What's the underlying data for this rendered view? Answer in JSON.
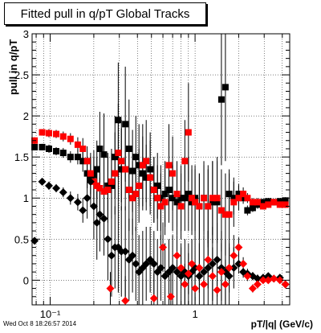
{
  "chart_data": {
    "type": "scatter",
    "title": "Fitted pull in q/pT  Global Tracks",
    "xlabel": "pT/|q| (GeV/c)",
    "ylabel": "pull in q/pT",
    "footer": "Wed Oct  8 18:26:57 2014",
    "x_scale": "log",
    "xlim": [
      0.075,
      4.5
    ],
    "ylim": [
      -0.3,
      3.0
    ],
    "x_ticks": [
      {
        "value": 0.1,
        "label": "10⁻¹"
      },
      {
        "value": 1,
        "label": "1"
      }
    ],
    "y_ticks": [
      {
        "value": 0,
        "label": "0"
      },
      {
        "value": 0.5,
        "label": "0.5"
      },
      {
        "value": 1,
        "label": "1"
      },
      {
        "value": 1.5,
        "label": "1.5"
      },
      {
        "value": 2,
        "label": "2"
      },
      {
        "value": 2.5,
        "label": "2.5"
      },
      {
        "value": 3,
        "label": "3"
      }
    ],
    "grid": true,
    "series": [
      {
        "color": "#000000",
        "marker": "square",
        "points": [
          [
            0.078,
            1.62,
            0.04
          ],
          [
            0.088,
            1.62,
            0.04
          ],
          [
            0.098,
            1.6,
            0.05
          ],
          [
            0.11,
            1.57,
            0.05
          ],
          [
            0.123,
            1.55,
            0.06
          ],
          [
            0.138,
            1.5,
            0.07
          ],
          [
            0.155,
            1.5,
            0.09
          ],
          [
            0.168,
            1.45,
            0.13
          ],
          [
            0.18,
            1.3,
            0.18
          ],
          [
            0.19,
            1.25,
            0.25
          ],
          [
            0.2,
            1.28,
            0.3
          ],
          [
            0.21,
            1.35,
            0.35
          ],
          [
            0.22,
            1.6,
            0.45
          ],
          [
            0.235,
            1.53,
            0.5
          ],
          [
            0.25,
            1.15,
            0.4
          ],
          [
            0.265,
            1.15,
            0.4
          ],
          [
            0.28,
            1.5,
            0.5
          ],
          [
            0.295,
            1.95,
            0.7
          ],
          [
            0.31,
            1.35,
            0.5
          ],
          [
            0.33,
            1.9,
            0.7
          ],
          [
            0.35,
            1.6,
            0.6
          ],
          [
            0.37,
            1.33,
            0.5
          ],
          [
            0.39,
            1.5,
            0.5
          ],
          [
            0.41,
            1.4,
            0.5
          ],
          [
            0.435,
            1.3,
            0.45
          ],
          [
            0.46,
            1.25,
            0.4
          ],
          [
            0.49,
            1.35,
            0.45
          ],
          [
            0.52,
            1.1,
            0.4
          ],
          [
            0.55,
            1.15,
            0.4
          ],
          [
            0.58,
            1.0,
            0.4
          ],
          [
            0.62,
            1.05,
            0.4
          ],
          [
            0.66,
            1.1,
            0.4
          ],
          [
            0.7,
            1.0,
            0.4
          ],
          [
            0.75,
            0.95,
            0.4
          ],
          [
            0.8,
            1.0,
            0.4
          ],
          [
            0.85,
            1.0,
            0.4
          ],
          [
            0.9,
            1.05,
            0.45
          ],
          [
            0.95,
            0.95,
            0.4
          ],
          [
            1.0,
            1.0,
            0.4
          ],
          [
            1.07,
            0.9,
            0.4
          ],
          [
            1.15,
            1.0,
            0.45
          ],
          [
            1.23,
            0.9,
            0.5
          ],
          [
            1.32,
            0.95,
            0.5
          ],
          [
            1.42,
            0.95,
            0.5
          ],
          [
            1.52,
            2.2,
            0.8
          ],
          [
            1.62,
            2.35,
            0.9
          ],
          [
            1.72,
            1.05,
            0.3
          ],
          [
            1.85,
            1.0,
            0.2
          ],
          [
            2.0,
            1.05,
            0.12
          ],
          [
            2.15,
            1.0,
            0.07
          ],
          [
            2.3,
            0.85,
            0.06
          ],
          [
            2.5,
            0.88,
            0.05
          ],
          [
            2.7,
            0.92,
            0.05
          ],
          [
            2.95,
            0.95,
            0.04
          ],
          [
            3.2,
            0.96,
            0.04
          ],
          [
            3.5,
            0.95,
            0.04
          ],
          [
            3.85,
            0.96,
            0.04
          ],
          [
            4.2,
            0.97,
            0.04
          ]
        ]
      },
      {
        "color": "#ff0000",
        "marker": "square",
        "points": [
          [
            0.078,
            1.7,
            0.04
          ],
          [
            0.088,
            1.8,
            0.04
          ],
          [
            0.098,
            1.79,
            0.05
          ],
          [
            0.11,
            1.78,
            0.05
          ],
          [
            0.123,
            1.75,
            0.06
          ],
          [
            0.138,
            1.72,
            0.07
          ],
          [
            0.155,
            1.65,
            0.09
          ],
          [
            0.168,
            1.6,
            0.13
          ],
          [
            0.18,
            1.45,
            0.18
          ],
          [
            0.19,
            1.3,
            0.25
          ],
          [
            0.2,
            1.2,
            0.3
          ],
          [
            0.21,
            1.15,
            0.35
          ],
          [
            0.22,
            1.12,
            0.45
          ],
          [
            0.235,
            1.08,
            0.5
          ],
          [
            0.25,
            1.1,
            0.4
          ],
          [
            0.265,
            1.2,
            0.4
          ],
          [
            0.28,
            1.3,
            0.5
          ],
          [
            0.295,
            1.55,
            0.6
          ],
          [
            0.31,
            1.45,
            0.5
          ],
          [
            0.33,
            1.35,
            0.5
          ],
          [
            0.35,
            1.1,
            0.5
          ],
          [
            0.37,
            1.0,
            0.45
          ],
          [
            0.39,
            1.05,
            0.45
          ],
          [
            0.41,
            1.15,
            0.45
          ],
          [
            0.435,
            1.4,
            0.5
          ],
          [
            0.46,
            1.45,
            0.5
          ],
          [
            0.49,
            1.25,
            0.45
          ],
          [
            0.52,
            1.1,
            0.4
          ],
          [
            0.55,
            1.0,
            0.4
          ],
          [
            0.58,
            0.9,
            0.4
          ],
          [
            0.62,
            0.95,
            0.4
          ],
          [
            0.66,
            1.4,
            0.5
          ],
          [
            0.7,
            1.3,
            0.45
          ],
          [
            0.75,
            1.05,
            0.4
          ],
          [
            0.8,
            0.9,
            0.4
          ],
          [
            0.85,
            1.45,
            0.5
          ],
          [
            0.9,
            1.8,
            0.6
          ],
          [
            0.95,
            1.0,
            0.4
          ],
          [
            1.0,
            0.95,
            0.4
          ],
          [
            1.07,
            0.9,
            0.4
          ],
          [
            1.15,
            1.0,
            0.4
          ],
          [
            1.23,
            0.9,
            0.45
          ],
          [
            1.32,
            1.0,
            0.45
          ],
          [
            1.42,
            1.0,
            0.5
          ],
          [
            1.52,
            0.85,
            0.5
          ],
          [
            1.62,
            0.8,
            0.5
          ],
          [
            1.72,
            0.8,
            0.5
          ],
          [
            1.85,
            0.95,
            0.3
          ],
          [
            2.0,
            1.0,
            0.15
          ],
          [
            2.15,
            1.05,
            0.08
          ],
          [
            2.3,
            1.0,
            0.06
          ],
          [
            2.5,
            0.95,
            0.05
          ],
          [
            2.7,
            0.95,
            0.05
          ],
          [
            2.95,
            0.9,
            0.04
          ],
          [
            3.2,
            0.92,
            0.04
          ],
          [
            3.5,
            0.95,
            0.04
          ],
          [
            3.85,
            0.92,
            0.04
          ],
          [
            4.2,
            0.92,
            0.04
          ]
        ]
      },
      {
        "color": "#000000",
        "marker": "diamond",
        "points": [
          [
            0.078,
            0.48,
            0.04
          ],
          [
            0.088,
            1.2,
            0.04
          ],
          [
            0.098,
            1.15,
            0.05
          ],
          [
            0.11,
            1.12,
            0.05
          ],
          [
            0.123,
            1.07,
            0.06
          ],
          [
            0.138,
            1.0,
            0.08
          ],
          [
            0.155,
            0.95,
            0.1
          ],
          [
            0.168,
            0.85,
            0.15
          ],
          [
            0.18,
            1.0,
            0.25
          ],
          [
            0.19,
            1.2,
            0.3
          ],
          [
            0.2,
            0.9,
            0.4
          ],
          [
            0.21,
            0.7,
            0.45
          ],
          [
            0.22,
            0.8,
            0.45
          ],
          [
            0.235,
            0.75,
            0.45
          ],
          [
            0.25,
            0.5,
            0.5
          ],
          [
            0.265,
            0.3,
            0.5
          ],
          [
            0.28,
            0.4,
            0.5
          ],
          [
            0.295,
            0.4,
            0.55
          ],
          [
            0.31,
            0.35,
            0.55
          ],
          [
            0.33,
            0.35,
            0.55
          ],
          [
            0.35,
            0.25,
            0.5
          ],
          [
            0.37,
            0.3,
            0.45
          ],
          [
            0.39,
            0.2,
            0.45
          ],
          [
            0.41,
            0.1,
            0.45
          ],
          [
            0.435,
            0.15,
            0.45
          ],
          [
            0.46,
            0.2,
            0.45
          ],
          [
            0.49,
            0.25,
            0.4
          ],
          [
            0.52,
            0.2,
            0.4
          ],
          [
            0.55,
            0.1,
            0.4
          ],
          [
            0.58,
            0.15,
            0.4
          ],
          [
            0.62,
            0.05,
            0.4
          ],
          [
            0.66,
            0.1,
            0.4
          ],
          [
            0.7,
            0.15,
            0.4
          ],
          [
            0.75,
            0.1,
            0.4
          ],
          [
            0.8,
            0.05,
            0.4
          ],
          [
            0.85,
            0.1,
            0.4
          ],
          [
            0.9,
            0.05,
            0.4
          ],
          [
            0.95,
            0.1,
            0.4
          ],
          [
            1.0,
            0.15,
            0.4
          ],
          [
            1.07,
            0.05,
            0.45
          ],
          [
            1.15,
            0.1,
            0.45
          ],
          [
            1.23,
            0.15,
            0.45
          ],
          [
            1.32,
            0.2,
            0.45
          ],
          [
            1.42,
            0.25,
            0.45
          ],
          [
            1.52,
            0.15,
            0.45
          ],
          [
            1.62,
            0.1,
            0.4
          ],
          [
            1.72,
            0.05,
            0.35
          ],
          [
            1.85,
            0.15,
            0.25
          ],
          [
            2.0,
            0.2,
            0.12
          ],
          [
            2.15,
            0.1,
            0.07
          ],
          [
            2.3,
            0.08,
            0.06
          ],
          [
            2.5,
            0.05,
            0.05
          ],
          [
            2.7,
            0.02,
            0.05
          ],
          [
            2.95,
            0.03,
            0.04
          ],
          [
            3.2,
            0.05,
            0.04
          ],
          [
            3.5,
            0.02,
            0.04
          ],
          [
            3.85,
            0.03,
            0.04
          ],
          [
            4.2,
            -0.05,
            0.04
          ]
        ]
      },
      {
        "color": "#ff0000",
        "marker": "diamond",
        "points": [
          [
            0.26,
            -0.1,
            0.2
          ],
          [
            0.33,
            -0.25,
            0.3
          ],
          [
            0.52,
            -0.22,
            0.3
          ],
          [
            0.6,
            0.4,
            0.3
          ],
          [
            0.68,
            -0.2,
            0.3
          ],
          [
            0.75,
            0.3,
            0.25
          ],
          [
            0.8,
            0.15,
            0.25
          ],
          [
            0.85,
            -0.05,
            0.25
          ],
          [
            0.9,
            0.08,
            0.25
          ],
          [
            0.95,
            0.2,
            0.3
          ],
          [
            1.0,
            -0.1,
            0.3
          ],
          [
            1.07,
            0.15,
            0.3
          ],
          [
            1.15,
            -0.05,
            0.3
          ],
          [
            1.23,
            0.25,
            0.35
          ],
          [
            1.32,
            0.05,
            0.35
          ],
          [
            1.42,
            -0.12,
            0.35
          ],
          [
            1.52,
            0.1,
            0.35
          ],
          [
            1.62,
            -0.05,
            0.3
          ],
          [
            1.72,
            0.15,
            0.3
          ],
          [
            1.85,
            0.3,
            0.25
          ],
          [
            2.0,
            0.4,
            0.12
          ],
          [
            2.15,
            0.2,
            0.08
          ],
          [
            2.3,
            0.05,
            0.06
          ],
          [
            2.5,
            -0.1,
            0.05
          ],
          [
            2.7,
            -0.05,
            0.05
          ],
          [
            2.95,
            0.0,
            0.04
          ],
          [
            3.2,
            0.0,
            0.04
          ],
          [
            3.5,
            0.02,
            0.04
          ],
          [
            3.85,
            0.0,
            0.04
          ],
          [
            4.2,
            -0.05,
            0.04
          ]
        ]
      }
    ]
  }
}
